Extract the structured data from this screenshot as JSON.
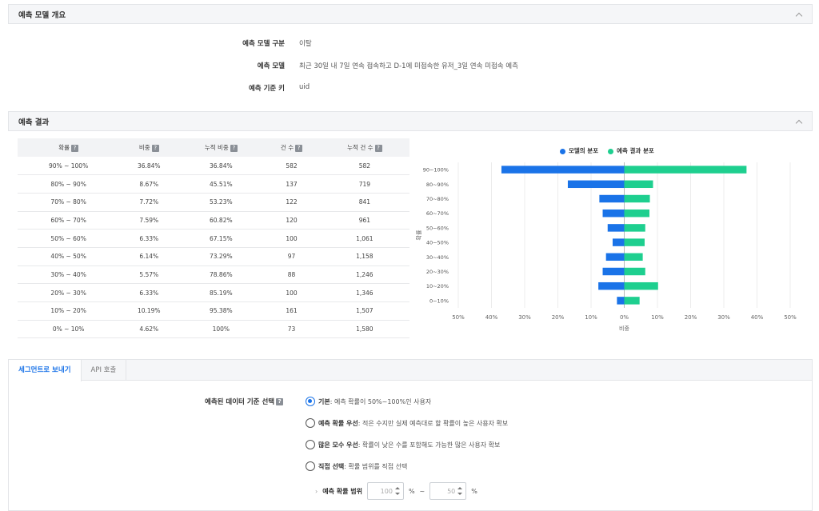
{
  "overview": {
    "header": "예측 모델 개요",
    "rows": [
      {
        "label": "예측 모델 구분",
        "value": "이탈"
      },
      {
        "label": "예측 모델",
        "value": "최근 30일 내 7일 연속 접속하고 D-1에 미접속한 유저_3일 연속 미접속 예측"
      },
      {
        "label": "예측 기준 키",
        "value": "uid"
      }
    ]
  },
  "results": {
    "header": "예측 결과",
    "columns": [
      "확률",
      "비중",
      "누적 비중",
      "건 수",
      "누적 건 수"
    ],
    "help_glyph": "?",
    "rows": [
      [
        "90% ~ 100%",
        "36.84%",
        "36.84%",
        "582",
        "582"
      ],
      [
        "80% ~ 90%",
        "8.67%",
        "45.51%",
        "137",
        "719"
      ],
      [
        "70% ~ 80%",
        "7.72%",
        "53.23%",
        "122",
        "841"
      ],
      [
        "60% ~ 70%",
        "7.59%",
        "60.82%",
        "120",
        "961"
      ],
      [
        "50% ~ 60%",
        "6.33%",
        "67.15%",
        "100",
        "1,061"
      ],
      [
        "40% ~ 50%",
        "6.14%",
        "73.29%",
        "97",
        "1,158"
      ],
      [
        "30% ~ 40%",
        "5.57%",
        "78.86%",
        "88",
        "1,246"
      ],
      [
        "20% ~ 30%",
        "6.33%",
        "85.19%",
        "100",
        "1,346"
      ],
      [
        "10% ~ 20%",
        "10.19%",
        "95.38%",
        "161",
        "1,507"
      ],
      [
        "0% ~ 10%",
        "4.62%",
        "100%",
        "73",
        "1,580"
      ]
    ]
  },
  "chart_data": {
    "type": "bar",
    "orientation": "horizontal-diverging",
    "categories": [
      "90~100%",
      "80~90%",
      "70~80%",
      "60~70%",
      "50~60%",
      "40~50%",
      "30~40%",
      "20~30%",
      "10~20%",
      "0~10%"
    ],
    "series": [
      {
        "name": "모델의 분포",
        "color": "#1a73e8",
        "values": [
          -37,
          -17,
          -7.5,
          -6.5,
          -5,
          -3.5,
          -5.5,
          -6.5,
          -7.8,
          -2.2
        ]
      },
      {
        "name": "예측 결과 분포",
        "color": "#1ecf8f",
        "values": [
          36.84,
          8.67,
          7.72,
          7.59,
          6.33,
          6.14,
          5.57,
          6.33,
          10.19,
          4.62
        ]
      }
    ],
    "x_ticks": [
      "50%",
      "40%",
      "30%",
      "20%",
      "10%",
      "0%",
      "10%",
      "20%",
      "30%",
      "40%",
      "50%"
    ],
    "xlabel": "비중",
    "ylabel": "확률",
    "xlim": [
      -50,
      50
    ],
    "legend": "top-center",
    "grid": true
  },
  "segment": {
    "tabs": [
      "세그먼트로 보내기",
      "API 호출"
    ],
    "selection_label": "예측된 데이터 기준 선택",
    "options": [
      {
        "title": "기본",
        "desc": " : 예측 확률이 50%~100%인 사용자",
        "checked": true
      },
      {
        "title": "예측 확률 우선",
        "desc": " : 적은 수지만 실제 예측대로 할 확률이 높은 사용자 확보",
        "checked": false
      },
      {
        "title": "많은 모수 우선",
        "desc": " : 확률이 낮은 수를 포함해도 가능한 많은 사용자 확보",
        "checked": false
      },
      {
        "title": "직접 선택",
        "desc": " : 확률 범위를 직접 선택",
        "checked": false
      }
    ],
    "range_label": "예측 확률 범위",
    "range_chevron": "›",
    "range_from": "100",
    "range_to": "50",
    "percent": "%",
    "tilde": "~"
  }
}
